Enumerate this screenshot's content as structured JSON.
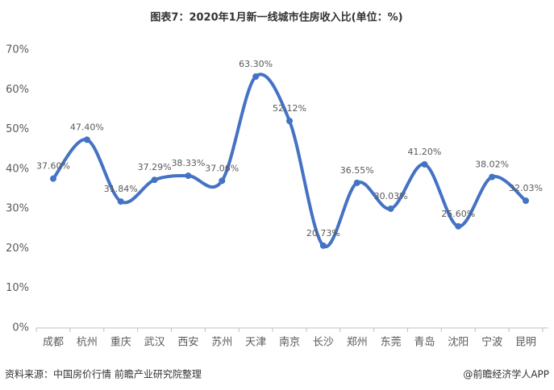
{
  "chart_data": {
    "type": "line",
    "title": "图表7：2020年1月新一线城市住房收入比(单位：%)",
    "categories": [
      "成都",
      "杭州",
      "重庆",
      "武汉",
      "西安",
      "苏州",
      "天津",
      "南京",
      "长沙",
      "郑州",
      "东莞",
      "青岛",
      "沈阳",
      "宁波",
      "昆明"
    ],
    "series": [
      {
        "color": "#4472c4",
        "values": [
          37.6,
          47.4,
          31.84,
          37.29,
          38.33,
          37.06,
          63.3,
          52.12,
          20.73,
          36.55,
          30.03,
          41.2,
          25.6,
          38.02,
          32.03
        ],
        "value_labels": [
          "37.60%",
          "47.40%",
          "31.84%",
          "37.29%",
          "38.33%",
          "37.06%",
          "63.30%",
          "52.12%",
          "20.73%",
          "36.55%",
          "30.03%",
          "41.20%",
          "25.60%",
          "38.02%",
          "32.03%"
        ]
      }
    ],
    "ylim": [
      0,
      70
    ],
    "yticks": [
      {
        "value": 0,
        "label": "0%"
      },
      {
        "value": 10,
        "label": "10%"
      },
      {
        "value": 20,
        "label": "20%"
      },
      {
        "value": 30,
        "label": "30%"
      },
      {
        "value": 40,
        "label": "40%"
      },
      {
        "value": 50,
        "label": "50%"
      },
      {
        "value": 60,
        "label": "60%"
      },
      {
        "value": 70,
        "label": "70%"
      }
    ],
    "smooth": true,
    "source": "资料来源：中国房价行情 前瞻产业研究院整理",
    "credit": "@前瞻经济学人APP"
  }
}
